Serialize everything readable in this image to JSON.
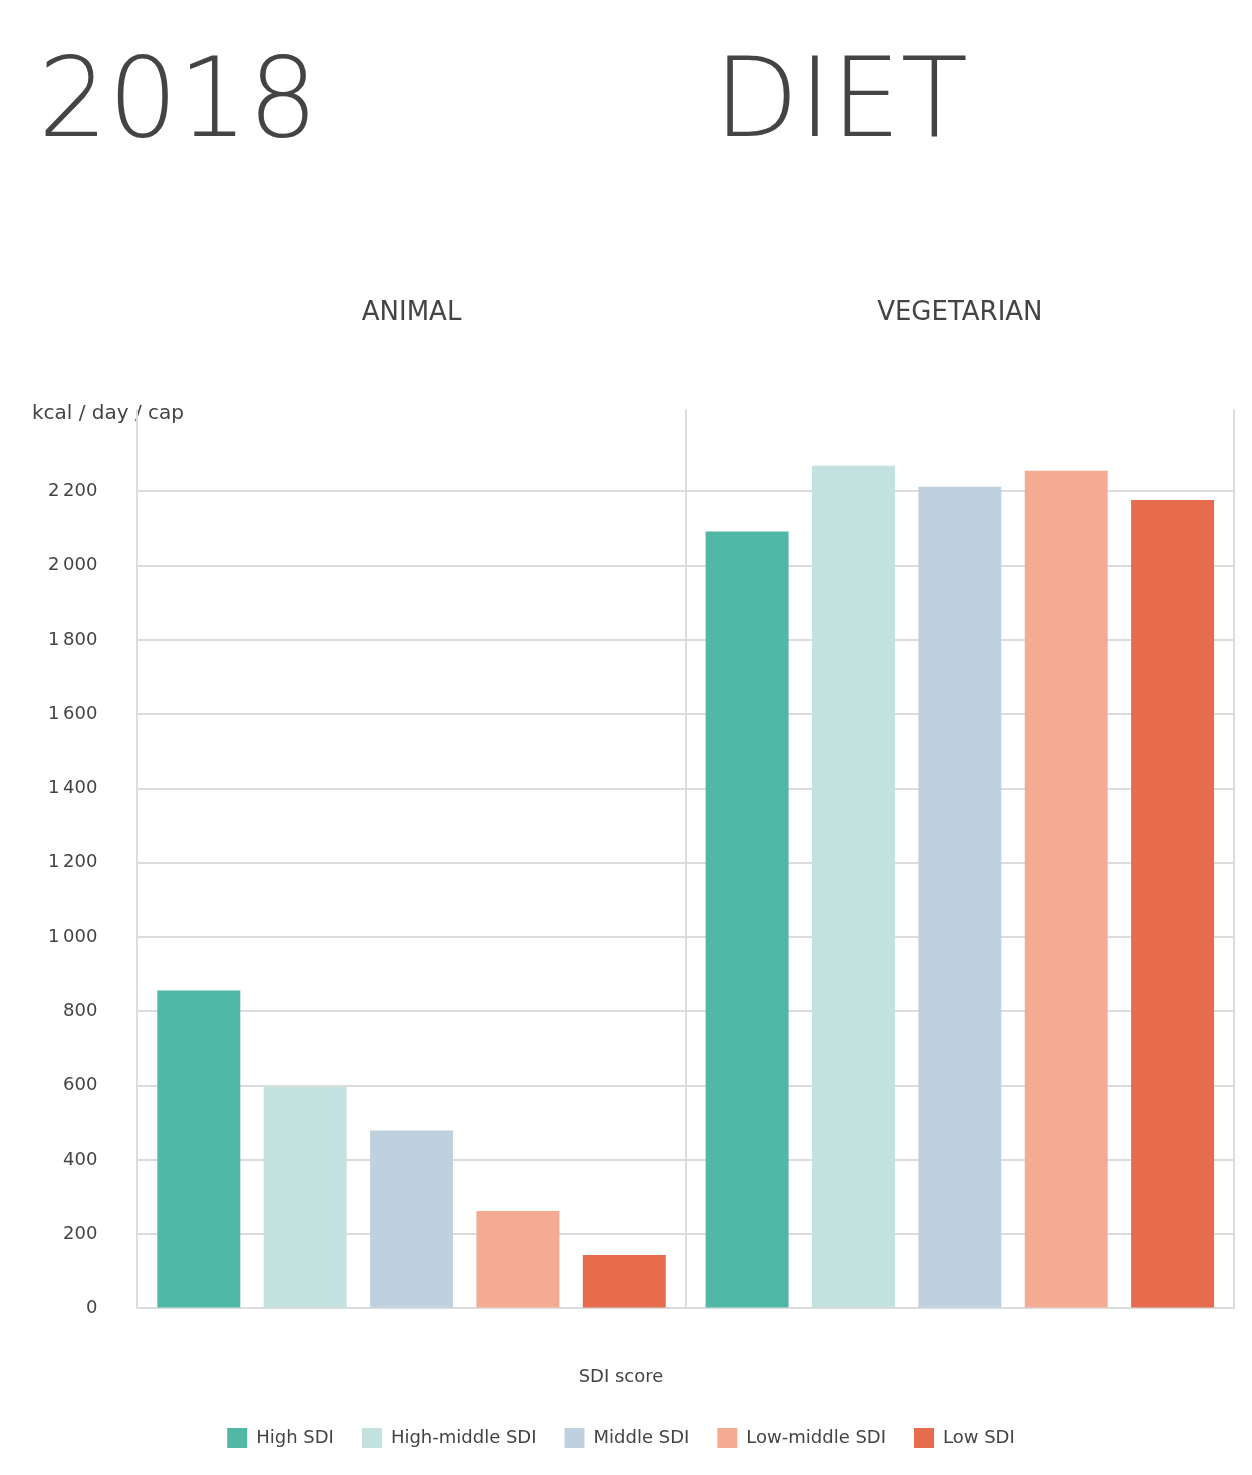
{
  "chart_data": {
    "type": "bar",
    "title": "DIET",
    "subtitle": "2018",
    "ylabel": "kcal / day / cap",
    "legend_title": "SDI score",
    "categories": [
      "ANIMAL",
      "VEGETARIAN"
    ],
    "series": [
      {
        "name": "High SDI",
        "color": "#52b8a6",
        "values": [
          856,
          2092
        ]
      },
      {
        "name": "High-middle SDI",
        "color": "#c3e2df",
        "values": [
          597,
          2269
        ]
      },
      {
        "name": "Middle SDI",
        "color": "#bfd1de",
        "values": [
          479,
          2213
        ]
      },
      {
        "name": "Low-middle SDI",
        "color": "#f5ab93",
        "values": [
          262,
          2256
        ]
      },
      {
        "name": "Low SDI",
        "color": "#e66c4d",
        "values": [
          144,
          2177
        ]
      }
    ],
    "ylim": [
      0,
      2400
    ],
    "yticks": [
      0,
      200,
      400,
      600,
      800,
      1000,
      1200,
      1400,
      1600,
      1800,
      2000,
      2200
    ],
    "grid": true,
    "legend": "bottom"
  }
}
